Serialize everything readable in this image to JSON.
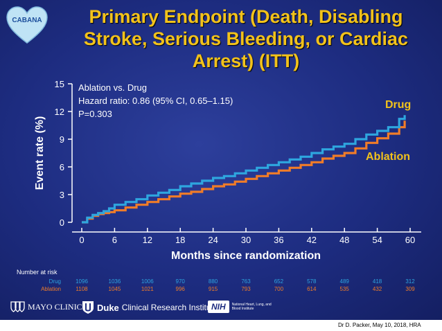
{
  "logo": {
    "name": "CABANA",
    "icon": "heart-logo"
  },
  "title": {
    "line1": "Primary Endpoint (Death, Disabling",
    "line2": "Stroke, Serious Bleeding, or Cardiac",
    "line3": "Arrest) (ITT)"
  },
  "annotation": {
    "line1": "Ablation vs. Drug",
    "line2": "Hazard ratio: 0.86 (95% CI, 0.65–1.15)",
    "line3": "P=0.303"
  },
  "chart_data": {
    "type": "line",
    "title": "Primary Endpoint (Death, Disabling Stroke, Serious Bleeding, or Cardiac Arrest) (ITT)",
    "xlabel": "Months since randomization",
    "ylabel": "Event rate (%)",
    "xlim": [
      0,
      60
    ],
    "ylim": [
      0,
      15
    ],
    "xticks": [
      "0",
      "6",
      "12",
      "18",
      "24",
      "30",
      "36",
      "42",
      "48",
      "54",
      "60"
    ],
    "yticks": [
      "0",
      "3",
      "6",
      "9",
      "12",
      "15"
    ],
    "grid": false,
    "legend": "inline labels at right end of lines",
    "series": [
      {
        "name": "Drug",
        "color": "#2ea6df",
        "x": [
          0,
          1,
          2,
          3,
          4,
          5,
          6,
          8,
          10,
          12,
          14,
          16,
          18,
          20,
          22,
          24,
          26,
          28,
          30,
          32,
          34,
          36,
          38,
          40,
          42,
          44,
          46,
          48,
          50,
          52,
          54,
          56,
          58,
          59
        ],
        "y": [
          0,
          0.5,
          0.8,
          1.0,
          1.2,
          1.5,
          1.9,
          2.2,
          2.5,
          2.9,
          3.2,
          3.5,
          3.9,
          4.2,
          4.5,
          4.8,
          5.0,
          5.3,
          5.6,
          5.9,
          6.2,
          6.5,
          6.8,
          7.1,
          7.5,
          7.9,
          8.2,
          8.5,
          9.0,
          9.5,
          9.9,
          10.3,
          11.2,
          11.6
        ]
      },
      {
        "name": "Ablation",
        "color": "#f07c28",
        "x": [
          0,
          1,
          2,
          3,
          4,
          5,
          6,
          8,
          10,
          12,
          14,
          16,
          18,
          20,
          22,
          24,
          26,
          28,
          30,
          32,
          34,
          36,
          38,
          40,
          42,
          44,
          46,
          48,
          50,
          52,
          54,
          56,
          58,
          59
        ],
        "y": [
          0,
          0.4,
          0.7,
          0.9,
          1.0,
          1.1,
          1.3,
          1.6,
          1.9,
          2.2,
          2.5,
          2.8,
          3.1,
          3.3,
          3.6,
          3.9,
          4.1,
          4.4,
          4.7,
          5.0,
          5.3,
          5.6,
          5.9,
          6.2,
          6.5,
          6.9,
          7.2,
          7.5,
          8.0,
          8.6,
          9.1,
          9.6,
          10.3,
          11.0
        ]
      }
    ]
  },
  "risk_table": {
    "header": "Number at risk",
    "rows": [
      {
        "label": "Drug",
        "color": "#2ea6df",
        "values": [
          "1096",
          "1036",
          "1006",
          "970",
          "880",
          "763",
          "652",
          "578",
          "489",
          "418",
          "312"
        ]
      },
      {
        "label": "Ablation",
        "color": "#f07c28",
        "values": [
          "1108",
          "1045",
          "1021",
          "996",
          "915",
          "793",
          "700",
          "614",
          "535",
          "432",
          "309"
        ]
      }
    ]
  },
  "footer": {
    "mayo": "MAYO CLINIC",
    "duke_bold": "Duke",
    "duke_rest": "Clinical Research Institute",
    "nih": "NIH",
    "nhlbi": "National Heart, Lung, and Blood Institute"
  },
  "credit": "Dr D. Packer,  May 10, 2018, HRA"
}
